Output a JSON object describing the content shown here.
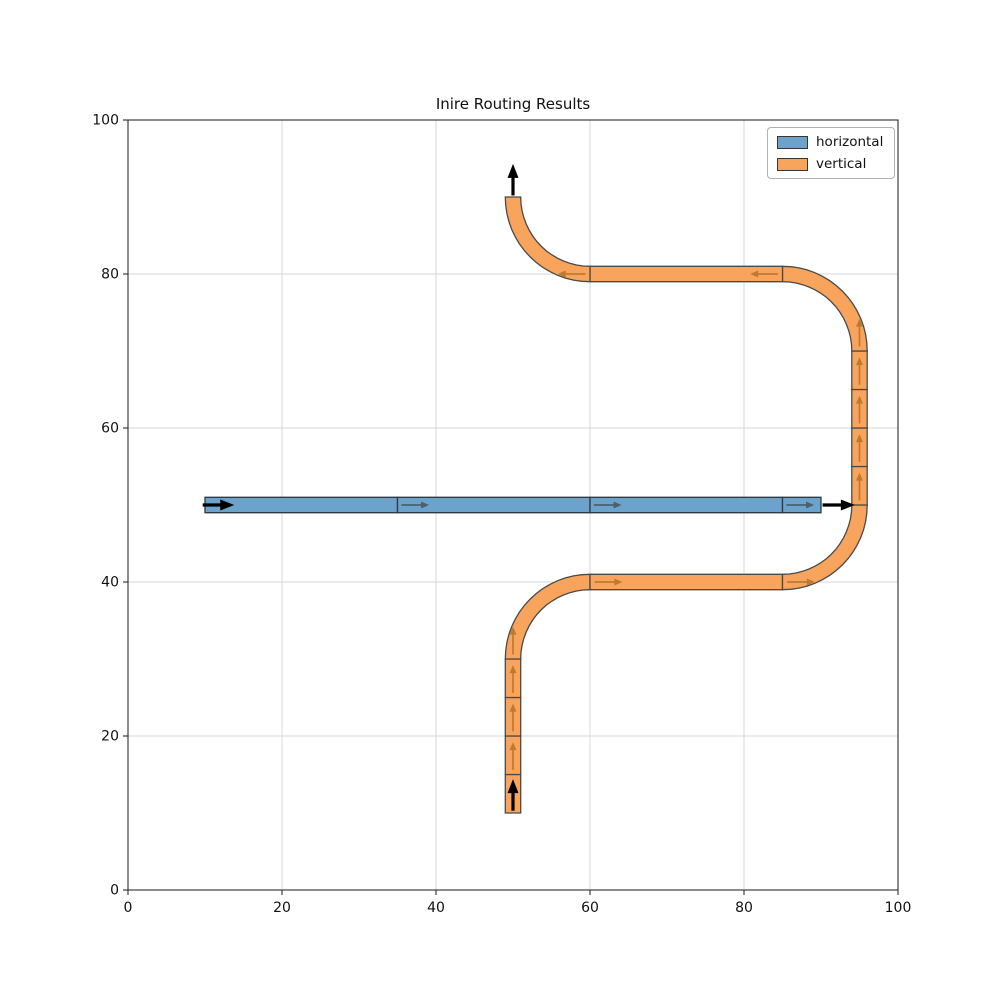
{
  "chart_data": {
    "type": "route-diagram",
    "title": "Inire Routing Results",
    "xlabel": "",
    "ylabel": "",
    "xlim": [
      0,
      100
    ],
    "ylim": [
      0,
      100
    ],
    "x_ticks": [
      0,
      20,
      40,
      60,
      80,
      100
    ],
    "y_ticks": [
      0,
      20,
      40,
      60,
      80,
      100
    ],
    "grid": true,
    "legend_position": "upper right",
    "path_half_width": 1,
    "corner_radius": 10,
    "colors": {
      "grid": "#d7d7d7",
      "spine": "#1a1a1a",
      "tick_label": "#111111"
    },
    "series": [
      {
        "name": "horizontal",
        "fill": "#6ba3cc",
        "edge": "#2e3b44",
        "segments": [
          {
            "type": "straight",
            "from": [
              10,
              50
            ],
            "to": [
              35,
              50
            ]
          },
          {
            "type": "straight",
            "from": [
              35,
              50
            ],
            "to": [
              60,
              50
            ]
          },
          {
            "type": "straight",
            "from": [
              60,
              50
            ],
            "to": [
              85,
              50
            ]
          },
          {
            "type": "straight",
            "from": [
              85,
              50
            ],
            "to": [
              90,
              50
            ]
          }
        ]
      },
      {
        "name": "vertical",
        "fill": "#f8a45c",
        "edge": "#4a4a4a",
        "segments": [
          {
            "type": "straight",
            "from": [
              50,
              10
            ],
            "to": [
              50,
              15
            ]
          },
          {
            "type": "straight",
            "from": [
              50,
              15
            ],
            "to": [
              50,
              20
            ]
          },
          {
            "type": "straight",
            "from": [
              50,
              20
            ],
            "to": [
              50,
              25
            ]
          },
          {
            "type": "straight",
            "from": [
              50,
              25
            ],
            "to": [
              50,
              30
            ]
          },
          {
            "type": "arc",
            "center": [
              60,
              30
            ],
            "a1": 180,
            "a2": 90
          },
          {
            "type": "straight",
            "from": [
              60,
              40
            ],
            "to": [
              85,
              40
            ]
          },
          {
            "type": "arc",
            "center": [
              85,
              50
            ],
            "a1": 270,
            "a2": 360
          },
          {
            "type": "straight",
            "from": [
              95,
              50
            ],
            "to": [
              95,
              55
            ]
          },
          {
            "type": "straight",
            "from": [
              95,
              55
            ],
            "to": [
              95,
              60
            ]
          },
          {
            "type": "straight",
            "from": [
              95,
              60
            ],
            "to": [
              95,
              65
            ]
          },
          {
            "type": "straight",
            "from": [
              95,
              65
            ],
            "to": [
              95,
              70
            ]
          },
          {
            "type": "arc",
            "center": [
              85,
              70
            ],
            "a1": 0,
            "a2": 90
          },
          {
            "type": "straight",
            "from": [
              85,
              80
            ],
            "to": [
              60,
              80
            ]
          },
          {
            "type": "arc",
            "center": [
              60,
              90
            ],
            "a1": 270,
            "a2": 180
          }
        ]
      }
    ],
    "arrow_styles": {
      "terminal": {
        "color": "#000000",
        "lw": 3.2,
        "head_l": 14,
        "head_w": 11
      },
      "flow_gray": {
        "color": "#4c5f6c",
        "lw": 1.7,
        "head_l": 8,
        "head_w": 7
      },
      "flow_orange": {
        "color": "#bc7a33",
        "lw": 1.7,
        "head_l": 8,
        "head_w": 7
      }
    },
    "arrows": [
      {
        "from": [
          9.7,
          50
        ],
        "to": [
          13.8,
          50
        ],
        "style": "terminal"
      },
      {
        "from": [
          35.5,
          50
        ],
        "to": [
          39.1,
          50
        ],
        "style": "flow_gray"
      },
      {
        "from": [
          60.5,
          50
        ],
        "to": [
          64.1,
          50
        ],
        "style": "flow_gray"
      },
      {
        "from": [
          85.5,
          50
        ],
        "to": [
          89.1,
          50
        ],
        "style": "flow_gray"
      },
      {
        "from": [
          90.2,
          50
        ],
        "to": [
          94.4,
          50
        ],
        "style": "terminal"
      },
      {
        "from": [
          50,
          10.3
        ],
        "to": [
          50,
          14.4
        ],
        "style": "terminal"
      },
      {
        "from": [
          50,
          15.6
        ],
        "to": [
          50,
          19.2
        ],
        "style": "flow_orange"
      },
      {
        "from": [
          50,
          20.6
        ],
        "to": [
          50,
          24.2
        ],
        "style": "flow_orange"
      },
      {
        "from": [
          50,
          25.6
        ],
        "to": [
          50,
          29.2
        ],
        "style": "flow_orange"
      },
      {
        "from": [
          50,
          30.6
        ],
        "to": [
          50,
          34.2
        ],
        "style": "flow_orange"
      },
      {
        "from": [
          60.6,
          40
        ],
        "to": [
          64.2,
          40
        ],
        "style": "flow_orange"
      },
      {
        "from": [
          85.6,
          40
        ],
        "to": [
          89.2,
          40
        ],
        "style": "flow_orange"
      },
      {
        "from": [
          95,
          50.6
        ],
        "to": [
          95,
          54.2
        ],
        "style": "flow_orange"
      },
      {
        "from": [
          95,
          55.6
        ],
        "to": [
          95,
          59.2
        ],
        "style": "flow_orange"
      },
      {
        "from": [
          95,
          60.6
        ],
        "to": [
          95,
          64.2
        ],
        "style": "flow_orange"
      },
      {
        "from": [
          95,
          65.6
        ],
        "to": [
          95,
          69.2
        ],
        "style": "flow_orange"
      },
      {
        "from": [
          95,
          70.6
        ],
        "to": [
          95,
          74.2
        ],
        "style": "flow_orange"
      },
      {
        "from": [
          84.4,
          80
        ],
        "to": [
          80.8,
          80
        ],
        "style": "flow_orange"
      },
      {
        "from": [
          59.4,
          80
        ],
        "to": [
          55.8,
          80
        ],
        "style": "flow_orange"
      },
      {
        "from": [
          50,
          90.2
        ],
        "to": [
          50,
          94.3
        ],
        "style": "terminal"
      }
    ]
  },
  "legend": {
    "items": [
      {
        "label": "horizontal"
      },
      {
        "label": "vertical"
      }
    ]
  }
}
